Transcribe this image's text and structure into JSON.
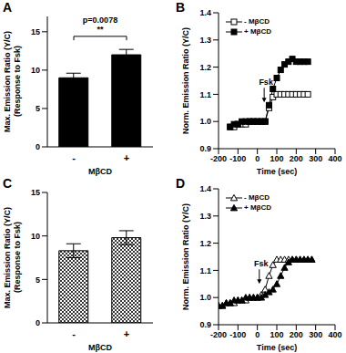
{
  "chart_data": [
    {
      "type": "bar",
      "title": "A",
      "ylabel": [
        "Max. Emission Ratio (Y/C)",
        "(Response to Fsk)"
      ],
      "xlabel": "MβCD",
      "categories": [
        "-",
        "+"
      ],
      "values": [
        9.0,
        12.0
      ],
      "errors": [
        0.6,
        0.7
      ],
      "color": "#000000",
      "ylim": [
        0,
        17
      ],
      "yticks": [
        0,
        5,
        10,
        15
      ],
      "grid": false,
      "annotations": [
        "**",
        "p=0.0078"
      ]
    },
    {
      "type": "line",
      "title": "B",
      "ylabel": "Norm. Emission Ratio (Y/C)",
      "xlabel": "Time (sec)",
      "x": [
        -140,
        -120,
        -100,
        -80,
        -60,
        -40,
        -20,
        0,
        20,
        40,
        60,
        80,
        100,
        120,
        140,
        160,
        180,
        200,
        220,
        240,
        260
      ],
      "series": [
        {
          "name": "- MβCD",
          "color": "#000000",
          "marker": "square_open",
          "values": [
            0.98,
            0.98,
            0.99,
            0.99,
            0.99,
            1.0,
            1.0,
            1.0,
            1.0,
            1.0,
            1.05,
            1.09,
            1.1,
            1.1,
            1.1,
            1.1,
            1.1,
            1.1,
            1.1,
            1.1,
            1.1
          ]
        },
        {
          "name": "+ MβCD",
          "color": "#000000",
          "marker": "square",
          "values": [
            0.98,
            0.99,
            0.99,
            1.0,
            1.0,
            1.0,
            1.0,
            1.0,
            1.0,
            1.0,
            1.06,
            1.12,
            1.16,
            1.19,
            1.21,
            1.22,
            1.23,
            1.22,
            1.22,
            1.22,
            1.22
          ]
        }
      ],
      "xlim": [
        -200,
        400
      ],
      "xticks": [
        -200,
        -100,
        0,
        100,
        200,
        300,
        400
      ],
      "ylim": [
        0.9,
        1.4
      ],
      "yticks": [
        0.9,
        {
          "value": 1.0,
          "label": "1.0"
        },
        1.1,
        1.2,
        1.3,
        1.4
      ],
      "grid": false,
      "legend": "top-left",
      "annotations": [
        {
          "text": "Fsk",
          "x": 35,
          "y": 1.07
        }
      ]
    },
    {
      "type": "bar",
      "title": "C",
      "ylabel": [
        "Max. Emission Ratio (Y/C)",
        "(Response to Fsk)"
      ],
      "xlabel": "MβCD",
      "categories": [
        "-",
        "+"
      ],
      "values": [
        8.3,
        9.8
      ],
      "errors": [
        0.8,
        0.8
      ],
      "color": "#333333",
      "marker": "checkered",
      "ylim": [
        0,
        15
      ],
      "yticks": [
        0,
        5,
        10,
        15
      ],
      "grid": false
    },
    {
      "type": "line",
      "title": "D",
      "ylabel": "Norm. Emission Ratio (Y/C)",
      "xlabel": "Time (sec)",
      "x": [
        -200,
        -180,
        -160,
        -140,
        -120,
        -100,
        -80,
        -60,
        -40,
        -20,
        0,
        20,
        40,
        60,
        80,
        100,
        120,
        140,
        160,
        180,
        200,
        220,
        240,
        260,
        280
      ],
      "series": [
        {
          "name": "- MβCD",
          "color": "#000000",
          "marker": "triangle_open",
          "values": [
            0.97,
            0.97,
            0.98,
            0.98,
            0.98,
            0.99,
            0.99,
            0.99,
            1.0,
            1.0,
            1.0,
            1.01,
            1.03,
            1.08,
            1.12,
            1.14,
            1.14,
            1.14,
            1.14,
            1.14,
            1.14,
            1.14,
            1.14,
            1.14,
            1.14
          ]
        },
        {
          "name": "+ MβCD",
          "color": "#000000",
          "marker": "triangle",
          "values": [
            0.97,
            0.97,
            0.98,
            0.98,
            0.99,
            0.99,
            0.99,
            1.0,
            1.0,
            1.0,
            1.0,
            1.0,
            1.01,
            1.02,
            1.03,
            1.05,
            1.08,
            1.11,
            1.13,
            1.14,
            1.14,
            1.14,
            1.14,
            1.14,
            1.14
          ]
        }
      ],
      "xlim": [
        -200,
        400
      ],
      "xticks": [
        -200,
        -100,
        0,
        100,
        200,
        300,
        400
      ],
      "ylim": [
        0.9,
        1.4
      ],
      "yticks": [
        0.9,
        {
          "value": 1.0,
          "label": "1.0"
        },
        1.1,
        1.2,
        1.3,
        1.4
      ],
      "grid": false,
      "legend": "top-left",
      "annotations": [
        {
          "text": "Fsk",
          "x": 10,
          "y": 1.05
        }
      ]
    }
  ]
}
